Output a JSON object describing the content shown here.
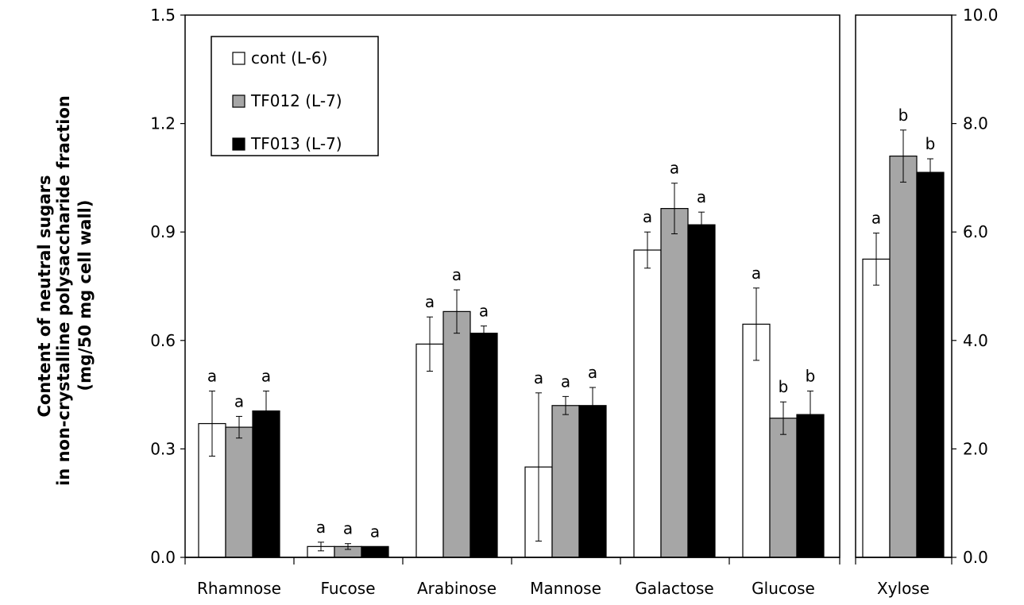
{
  "chart_data": {
    "type": "bar",
    "ylabel": [
      "Content of neutral sugars",
      "in non-crystalline polysaccharide fraction",
      "(mg/50 mg cell wall)"
    ],
    "legend": {
      "placement": "top-left"
    },
    "series": [
      {
        "name": "cont (L-6)",
        "color": "#ffffff"
      },
      {
        "name": "TF012 (L-7)",
        "color": "#a6a6a6"
      },
      {
        "name": "TF013 (L-7)",
        "color": "#000000"
      }
    ],
    "panels": [
      {
        "categories": [
          "Rhamnose",
          "Fucose",
          "Arabinose",
          "Mannose",
          "Galactose",
          "Glucose"
        ],
        "ylim": [
          0,
          1.5
        ],
        "yticks": [
          "0.0",
          "0.3",
          "0.6",
          "0.9",
          "1.2",
          "1.5"
        ],
        "axis": "left",
        "values": [
          [
            0.37,
            0.03,
            0.59,
            0.25,
            0.85,
            0.645
          ],
          [
            0.36,
            0.03,
            0.68,
            0.42,
            0.965,
            0.385
          ],
          [
            0.405,
            0.03,
            0.62,
            0.42,
            0.92,
            0.395
          ]
        ],
        "errors": [
          [
            0.09,
            0.012,
            0.075,
            0.205,
            0.05,
            0.1
          ],
          [
            0.03,
            0.008,
            0.06,
            0.025,
            0.07,
            0.045
          ],
          [
            0.055,
            0.0,
            0.02,
            0.05,
            0.035,
            0.065
          ]
        ],
        "letters": [
          [
            "a",
            "a",
            "a",
            "a",
            "a",
            "a"
          ],
          [
            "a",
            "a",
            "a",
            "a",
            "a",
            "b"
          ],
          [
            "a",
            "a",
            "a",
            "a",
            "a",
            "b"
          ]
        ]
      },
      {
        "categories": [
          "Xylose"
        ],
        "ylim": [
          0,
          10.0
        ],
        "yticks": [
          "0.0",
          "2.0",
          "4.0",
          "6.0",
          "8.0",
          "10.0"
        ],
        "axis": "right",
        "values": [
          [
            5.5
          ],
          [
            7.4
          ],
          [
            7.1
          ]
        ],
        "errors": [
          [
            0.48
          ],
          [
            0.48
          ],
          [
            0.25
          ]
        ],
        "letters": [
          [
            "a"
          ],
          [
            "b"
          ],
          [
            "b"
          ]
        ]
      }
    ]
  }
}
